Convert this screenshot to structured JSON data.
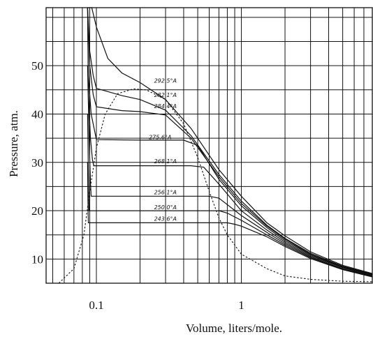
{
  "chart_data": {
    "type": "line",
    "xlabel": "Volume, liters/mole.",
    "ylabel": "Pressure, atm.",
    "xscale": "log",
    "xlim": [
      0.045,
      8
    ],
    "ylim": [
      5,
      62
    ],
    "x_ticks": [
      {
        "value": 0.1,
        "label": "0.1"
      },
      {
        "value": 1,
        "label": "1"
      }
    ],
    "y_ticks": [
      {
        "value": 10,
        "label": "10"
      },
      {
        "value": 20,
        "label": "20"
      },
      {
        "value": 30,
        "label": "30"
      },
      {
        "value": 40,
        "label": "40"
      },
      {
        "value": 50,
        "label": "50"
      }
    ],
    "grid": true,
    "series": [
      {
        "name": "292.5°A",
        "label_at": [
          0.25,
          46.5
        ],
        "points": [
          [
            0.087,
            62
          ],
          [
            0.093,
            62
          ],
          [
            0.1,
            58.0
          ],
          [
            0.12,
            51.5
          ],
          [
            0.15,
            48.5
          ],
          [
            0.2,
            46.5
          ],
          [
            0.3,
            43.0
          ],
          [
            0.45,
            37.0
          ],
          [
            0.7,
            28.5
          ],
          [
            1.0,
            23.0
          ],
          [
            1.5,
            17.5
          ],
          [
            2.0,
            14.8
          ],
          [
            3.0,
            11.5
          ],
          [
            5.0,
            8.7
          ],
          [
            8.0,
            7.0
          ]
        ]
      },
      {
        "name": "282.1°A",
        "label_at": [
          0.25,
          43.5
        ],
        "points": [
          [
            0.087,
            62
          ],
          [
            0.09,
            53
          ],
          [
            0.095,
            48
          ],
          [
            0.1,
            45.3
          ],
          [
            0.15,
            43.8
          ],
          [
            0.2,
            43.0
          ],
          [
            0.3,
            40.8
          ],
          [
            0.45,
            35.5
          ],
          [
            0.7,
            27.5
          ],
          [
            1.0,
            22.0
          ],
          [
            1.5,
            17.0
          ],
          [
            2.0,
            14.3
          ],
          [
            3.0,
            11.2
          ],
          [
            5.0,
            8.5
          ],
          [
            8.0,
            6.9
          ]
        ]
      },
      {
        "name": "284.4°A",
        "label_at": [
          0.25,
          41.2
        ],
        "points": [
          [
            0.087,
            62
          ],
          [
            0.09,
            50
          ],
          [
            0.095,
            44
          ],
          [
            0.1,
            41.5
          ],
          [
            0.15,
            40.7
          ],
          [
            0.2,
            40.5
          ],
          [
            0.3,
            39.8
          ],
          [
            0.45,
            35.0
          ],
          [
            0.7,
            27.0
          ],
          [
            1.0,
            21.5
          ],
          [
            1.5,
            16.8
          ],
          [
            2.0,
            14.1
          ],
          [
            3.0,
            11.0
          ],
          [
            5.0,
            8.4
          ],
          [
            8.0,
            6.8
          ]
        ]
      },
      {
        "name": "275.6°A",
        "label_at": [
          0.23,
          34.8
        ],
        "points": [
          [
            0.087,
            62
          ],
          [
            0.088,
            48
          ],
          [
            0.092,
            40
          ],
          [
            0.098,
            36
          ],
          [
            0.1,
            34.7
          ],
          [
            0.2,
            34.6
          ],
          [
            0.4,
            34.6
          ],
          [
            0.5,
            33.5
          ],
          [
            0.7,
            26.5
          ],
          [
            1.0,
            21.0
          ],
          [
            1.5,
            16.5
          ],
          [
            2.0,
            13.8
          ],
          [
            3.0,
            10.9
          ],
          [
            5.0,
            8.3
          ],
          [
            8.0,
            6.7
          ]
        ]
      },
      {
        "name": "268.1°A",
        "label_at": [
          0.25,
          29.8
        ],
        "points": [
          [
            0.087,
            62
          ],
          [
            0.088,
            45
          ],
          [
            0.091,
            35
          ],
          [
            0.094,
            30.5
          ],
          [
            0.096,
            29.3
          ],
          [
            0.2,
            29.3
          ],
          [
            0.45,
            29.3
          ],
          [
            0.55,
            29.0
          ],
          [
            0.7,
            25.5
          ],
          [
            1.0,
            20.0
          ],
          [
            1.5,
            16.0
          ],
          [
            2.0,
            13.5
          ],
          [
            3.0,
            10.7
          ],
          [
            5.0,
            8.2
          ],
          [
            8.0,
            6.6
          ]
        ]
      },
      {
        "name": "256.1°A",
        "label_at": [
          0.25,
          23.4
        ],
        "points": [
          [
            0.087,
            50
          ],
          [
            0.089,
            35
          ],
          [
            0.091,
            26
          ],
          [
            0.092,
            23.0
          ],
          [
            0.3,
            23.0
          ],
          [
            0.6,
            23.0
          ],
          [
            0.7,
            22.6
          ],
          [
            1.0,
            19.0
          ],
          [
            1.5,
            15.5
          ],
          [
            2.0,
            13.2
          ],
          [
            3.0,
            10.5
          ],
          [
            5.0,
            8.0
          ],
          [
            8.0,
            6.5
          ]
        ]
      },
      {
        "name": "250.0°A",
        "label_at": [
          0.25,
          20.3
        ],
        "points": [
          [
            0.087,
            40
          ],
          [
            0.088,
            28
          ],
          [
            0.089,
            20.0
          ],
          [
            0.3,
            20.0
          ],
          [
            0.7,
            20.0
          ],
          [
            0.8,
            19.5
          ],
          [
            1.0,
            18.0
          ],
          [
            1.5,
            15.0
          ],
          [
            2.0,
            12.9
          ],
          [
            3.0,
            10.3
          ],
          [
            5.0,
            7.9
          ],
          [
            8.0,
            6.4
          ]
        ]
      },
      {
        "name": "243.6°A",
        "label_at": [
          0.25,
          17.9
        ],
        "points": [
          [
            0.087,
            30
          ],
          [
            0.0875,
            22
          ],
          [
            0.088,
            17.5
          ],
          [
            0.3,
            17.5
          ],
          [
            0.8,
            17.5
          ],
          [
            0.9,
            17.2
          ],
          [
            1.0,
            16.8
          ],
          [
            1.5,
            14.6
          ],
          [
            2.0,
            12.6
          ],
          [
            3.0,
            10.1
          ],
          [
            5.0,
            7.8
          ],
          [
            8.0,
            6.3
          ]
        ]
      }
    ],
    "coexistence_boundary": [
      [
        0.055,
        5
      ],
      [
        0.07,
        8
      ],
      [
        0.082,
        15
      ],
      [
        0.09,
        24
      ],
      [
        0.1,
        33
      ],
      [
        0.115,
        40
      ],
      [
        0.14,
        44.2
      ],
      [
        0.18,
        45.2
      ],
      [
        0.22,
        45.0
      ],
      [
        0.3,
        43.0
      ],
      [
        0.4,
        38.0
      ],
      [
        0.5,
        31.0
      ],
      [
        0.6,
        24.0
      ],
      [
        0.7,
        18.5
      ],
      [
        0.8,
        15.0
      ],
      [
        1.0,
        11.0
      ],
      [
        1.5,
        8.0
      ],
      [
        2.0,
        6.5
      ],
      [
        3.0,
        5.8
      ],
      [
        5.0,
        5.4
      ],
      [
        8.0,
        5.3
      ]
    ]
  }
}
